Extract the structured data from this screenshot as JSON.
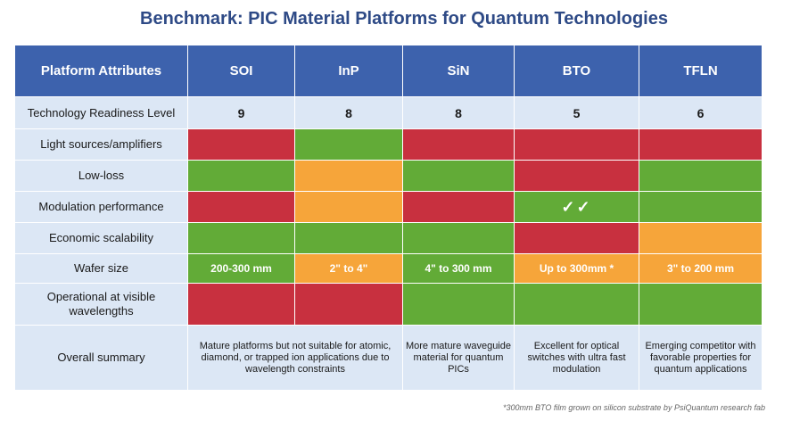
{
  "title": "Benchmark: PIC Material Platforms for Quantum Technologies",
  "header": {
    "attributes": "Platform Attributes",
    "platforms": [
      "SOI",
      "InP",
      "SiN",
      "BTO",
      "TFLN"
    ]
  },
  "rows": {
    "trl": {
      "label": "Technology Readiness Level",
      "values": [
        "9",
        "8",
        "8",
        "5",
        "6"
      ]
    },
    "light": {
      "label": "Light sources/amplifiers",
      "colors": [
        "red",
        "green",
        "red",
        "red",
        "red"
      ]
    },
    "loss": {
      "label": "Low-loss",
      "colors": [
        "green",
        "orange",
        "green",
        "red",
        "green"
      ]
    },
    "modulation": {
      "label": "Modulation performance",
      "colors": [
        "red",
        "orange",
        "red",
        "green",
        "green"
      ],
      "bto_mark": "✓✓"
    },
    "economic": {
      "label": "Economic scalability",
      "colors": [
        "green",
        "green",
        "green",
        "red",
        "orange"
      ]
    },
    "wafer": {
      "label": "Wafer size",
      "colors": [
        "green",
        "orange",
        "green",
        "orange",
        "orange"
      ],
      "values": [
        "200-300 mm",
        "2\" to 4\"",
        "4\" to 300 mm",
        "Up to 300mm *",
        "3\" to 200 mm"
      ]
    },
    "visible": {
      "label": "Operational at visible wavelengths",
      "colors": [
        "red",
        "red",
        "green",
        "green",
        "green"
      ]
    },
    "summary": {
      "label": "Overall summary",
      "soi_inp": "Mature platforms but not suitable for atomic, diamond, or trapped ion applications due to wavelength constraints",
      "sin": "More mature waveguide material for quantum PICs",
      "bto": "Excellent for optical switches with ultra fast modulation",
      "tfln": "Emerging competitor with favorable properties for quantum applications"
    }
  },
  "colors": {
    "green": "#62ab37",
    "red": "#c8303f",
    "orange": "#f6a53a",
    "header": "#3d62ad",
    "light_blue": "#dce7f5"
  },
  "footnote": "*300mm BTO film grown on silicon substrate by PsiQuantum research fab"
}
